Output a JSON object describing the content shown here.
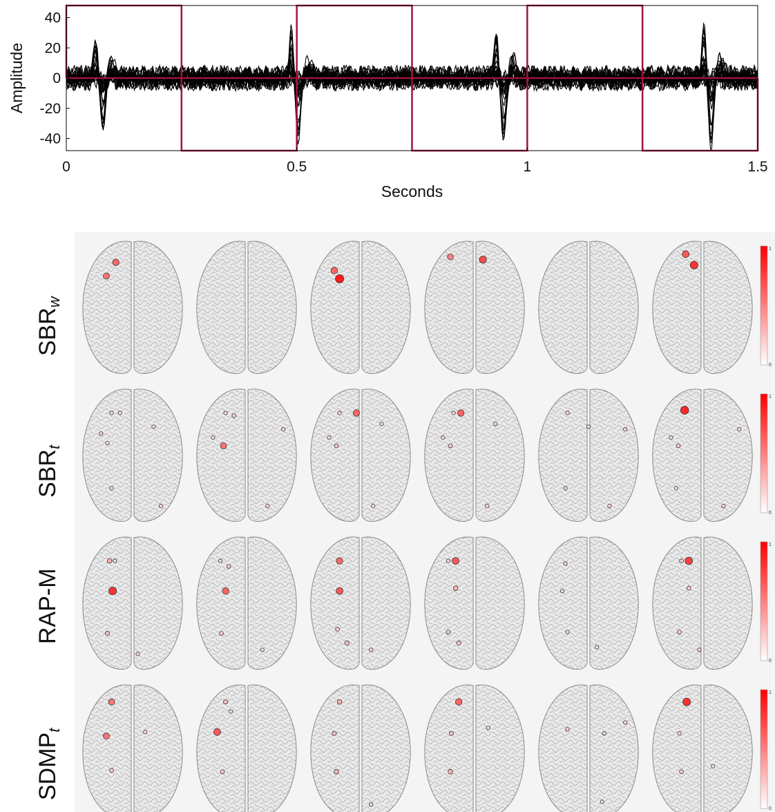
{
  "chart_data": [
    {
      "type": "line",
      "xlabel": "Seconds",
      "ylabel": "Amplitude",
      "xlim": [
        0,
        1.5
      ],
      "ylim": [
        -48,
        48
      ],
      "xticks": [
        0,
        0.5,
        1,
        1.5
      ],
      "xtick_labels": [
        "0",
        "0.5",
        "1",
        "1.5"
      ],
      "yticks": [
        40,
        20,
        0,
        -20,
        -40
      ],
      "ytick_labels": [
        "40",
        "20",
        "0",
        "-20",
        "-40"
      ],
      "series": [
        {
          "description": "overlaid multichannel EEG traces",
          "color": "#000000",
          "spikes": [
            {
              "x": 0.075,
              "peak": 28,
              "trough": -36
            },
            {
              "x": 0.5,
              "peak": 32,
              "trough": -44
            },
            {
              "x": 0.945,
              "peak": 33,
              "trough": -47
            },
            {
              "x": 1.395,
              "peak": 36,
              "trough": -47
            }
          ]
        },
        {
          "description": "window markers (alternating square wave)",
          "color": "#a0143c",
          "windows": [
            {
              "x0": 0,
              "x1": 0.25,
              "side": "up"
            },
            {
              "x0": 0.25,
              "x1": 0.5,
              "side": "down"
            },
            {
              "x0": 0.5,
              "x1": 0.75,
              "side": "up"
            },
            {
              "x0": 0.75,
              "x1": 1.0,
              "side": "down"
            },
            {
              "x0": 1.0,
              "x1": 1.25,
              "side": "up"
            },
            {
              "x0": 1.25,
              "x1": 1.5,
              "side": "down"
            }
          ]
        }
      ],
      "grid": false
    },
    {
      "type": "heatmap",
      "rows": [
        {
          "label": "SBR",
          "sub": "w"
        },
        {
          "label": "SBR",
          "sub": "t"
        },
        {
          "label": "RAP-M",
          "sub": ""
        },
        {
          "label": "SDMP",
          "sub": "t"
        }
      ],
      "columns": 6,
      "colorbar": {
        "min": 0,
        "max": 1,
        "colors": [
          "#ffffff",
          "#ff0000"
        ],
        "top_label": "1",
        "bottom_label": "0"
      },
      "sources": [
        [
          [
            {
              "x": 0.34,
              "y": 0.18,
              "s": 0.6
            },
            {
              "x": 0.25,
              "y": 0.28,
              "s": 0.55
            }
          ],
          [],
          [
            {
              "x": 0.25,
              "y": 0.24,
              "s": 0.6
            },
            {
              "x": 0.3,
              "y": 0.3,
              "s": 0.9
            }
          ],
          [
            {
              "x": 0.27,
              "y": 0.14,
              "s": 0.5
            },
            {
              "x": 0.58,
              "y": 0.16,
              "s": 0.7
            }
          ],
          [],
          [
            {
              "x": 0.34,
              "y": 0.12,
              "s": 0.65
            },
            {
              "x": 0.42,
              "y": 0.2,
              "s": 0.8
            }
          ]
        ],
        [
          [
            {
              "x": 0.3,
              "y": 0.2,
              "s": 0.15
            },
            {
              "x": 0.38,
              "y": 0.2,
              "s": 0.15
            },
            {
              "x": 0.2,
              "y": 0.35,
              "s": 0.15
            },
            {
              "x": 0.26,
              "y": 0.42,
              "s": 0.15
            },
            {
              "x": 0.7,
              "y": 0.3,
              "s": 0.15
            },
            {
              "x": 0.3,
              "y": 0.75,
              "s": 0.15
            },
            {
              "x": 0.77,
              "y": 0.88,
              "s": 0.15
            }
          ],
          [
            {
              "x": 0.3,
              "y": 0.2,
              "s": 0.15
            },
            {
              "x": 0.38,
              "y": 0.22,
              "s": 0.2
            },
            {
              "x": 0.18,
              "y": 0.38,
              "s": 0.15
            },
            {
              "x": 0.28,
              "y": 0.44,
              "s": 0.55
            },
            {
              "x": 0.85,
              "y": 0.32,
              "s": 0.15
            },
            {
              "x": 0.7,
              "y": 0.88,
              "s": 0.15
            }
          ],
          [
            {
              "x": 0.3,
              "y": 0.2,
              "s": 0.15
            },
            {
              "x": 0.46,
              "y": 0.2,
              "s": 0.6
            },
            {
              "x": 0.2,
              "y": 0.38,
              "s": 0.15
            },
            {
              "x": 0.27,
              "y": 0.44,
              "s": 0.2
            },
            {
              "x": 0.7,
              "y": 0.28,
              "s": 0.15
            },
            {
              "x": 0.62,
              "y": 0.88,
              "s": 0.15
            }
          ],
          [
            {
              "x": 0.3,
              "y": 0.2,
              "s": 0.15
            },
            {
              "x": 0.37,
              "y": 0.2,
              "s": 0.6
            },
            {
              "x": 0.2,
              "y": 0.38,
              "s": 0.15
            },
            {
              "x": 0.27,
              "y": 0.44,
              "s": 0.2
            },
            {
              "x": 0.7,
              "y": 0.28,
              "s": 0.15
            },
            {
              "x": 0.62,
              "y": 0.88,
              "s": 0.15
            }
          ],
          [
            {
              "x": 0.3,
              "y": 0.2,
              "s": 0.15
            },
            {
              "x": 0.5,
              "y": 0.3,
              "s": 0.15
            },
            {
              "x": 0.85,
              "y": 0.32,
              "s": 0.15
            },
            {
              "x": 0.28,
              "y": 0.75,
              "s": 0.15
            },
            {
              "x": 0.7,
              "y": 0.88,
              "s": 0.15
            }
          ],
          [
            {
              "x": 0.33,
              "y": 0.18,
              "s": 0.85
            },
            {
              "x": 0.2,
              "y": 0.38,
              "s": 0.15
            },
            {
              "x": 0.27,
              "y": 0.44,
              "s": 0.2
            },
            {
              "x": 0.85,
              "y": 0.32,
              "s": 0.15
            },
            {
              "x": 0.25,
              "y": 0.75,
              "s": 0.15
            },
            {
              "x": 0.7,
              "y": 0.88,
              "s": 0.15
            }
          ]
        ],
        [
          [
            {
              "x": 0.28,
              "y": 0.2,
              "s": 0.3
            },
            {
              "x": 0.33,
              "y": 0.2,
              "s": 0.15
            },
            {
              "x": 0.31,
              "y": 0.42,
              "s": 0.8
            },
            {
              "x": 0.26,
              "y": 0.73,
              "s": 0.25
            },
            {
              "x": 0.55,
              "y": 0.88,
              "s": 0.15
            }
          ],
          [
            {
              "x": 0.25,
              "y": 0.2,
              "s": 0.15
            },
            {
              "x": 0.33,
              "y": 0.24,
              "s": 0.2
            },
            {
              "x": 0.3,
              "y": 0.42,
              "s": 0.6
            },
            {
              "x": 0.26,
              "y": 0.73,
              "s": 0.2
            },
            {
              "x": 0.65,
              "y": 0.85,
              "s": 0.15
            }
          ],
          [
            {
              "x": 0.3,
              "y": 0.2,
              "s": 0.6
            },
            {
              "x": 0.3,
              "y": 0.42,
              "s": 0.65
            },
            {
              "x": 0.28,
              "y": 0.7,
              "s": 0.2
            },
            {
              "x": 0.37,
              "y": 0.8,
              "s": 0.25
            },
            {
              "x": 0.6,
              "y": 0.85,
              "s": 0.15
            }
          ],
          [
            {
              "x": 0.32,
              "y": 0.2,
              "s": 0.65
            },
            {
              "x": 0.25,
              "y": 0.2,
              "s": 0.15
            },
            {
              "x": 0.32,
              "y": 0.4,
              "s": 0.3
            },
            {
              "x": 0.25,
              "y": 0.72,
              "s": 0.2
            },
            {
              "x": 0.35,
              "y": 0.8,
              "s": 0.25
            }
          ],
          [
            {
              "x": 0.28,
              "y": 0.22,
              "s": 0.15
            },
            {
              "x": 0.25,
              "y": 0.42,
              "s": 0.15
            },
            {
              "x": 0.3,
              "y": 0.72,
              "s": 0.15
            },
            {
              "x": 0.58,
              "y": 0.83,
              "s": 0.15
            }
          ],
          [
            {
              "x": 0.3,
              "y": 0.2,
              "s": 0.2
            },
            {
              "x": 0.37,
              "y": 0.2,
              "s": 0.75
            },
            {
              "x": 0.37,
              "y": 0.4,
              "s": 0.2
            },
            {
              "x": 0.28,
              "y": 0.72,
              "s": 0.2
            },
            {
              "x": 0.47,
              "y": 0.85,
              "s": 0.15
            }
          ]
        ],
        [
          [
            {
              "x": 0.3,
              "y": 0.15,
              "s": 0.55
            },
            {
              "x": 0.25,
              "y": 0.4,
              "s": 0.55
            },
            {
              "x": 0.3,
              "y": 0.65,
              "s": 0.2
            },
            {
              "x": 0.62,
              "y": 0.37,
              "s": 0.15
            }
          ],
          [
            {
              "x": 0.3,
              "y": 0.15,
              "s": 0.25
            },
            {
              "x": 0.22,
              "y": 0.37,
              "s": 0.65
            },
            {
              "x": 0.27,
              "y": 0.66,
              "s": 0.2
            },
            {
              "x": 0.35,
              "y": 0.22,
              "s": 0.15
            }
          ],
          [
            {
              "x": 0.3,
              "y": 0.15,
              "s": 0.3
            },
            {
              "x": 0.25,
              "y": 0.38,
              "s": 0.25
            },
            {
              "x": 0.27,
              "y": 0.66,
              "s": 0.3
            },
            {
              "x": 0.6,
              "y": 0.9,
              "s": 0.15
            }
          ],
          [
            {
              "x": 0.35,
              "y": 0.15,
              "s": 0.6
            },
            {
              "x": 0.28,
              "y": 0.38,
              "s": 0.25
            },
            {
              "x": 0.27,
              "y": 0.66,
              "s": 0.3
            },
            {
              "x": 0.63,
              "y": 0.34,
              "s": 0.15
            }
          ],
          [
            {
              "x": 0.3,
              "y": 0.35,
              "s": 0.15
            },
            {
              "x": 0.65,
              "y": 0.38,
              "s": 0.15
            },
            {
              "x": 0.85,
              "y": 0.3,
              "s": 0.15
            },
            {
              "x": 0.63,
              "y": 0.88,
              "s": 0.15
            }
          ],
          [
            {
              "x": 0.35,
              "y": 0.15,
              "s": 0.8
            },
            {
              "x": 0.28,
              "y": 0.38,
              "s": 0.15
            },
            {
              "x": 0.3,
              "y": 0.66,
              "s": 0.2
            },
            {
              "x": 0.6,
              "y": 0.62,
              "s": 0.15
            }
          ]
        ]
      ]
    }
  ]
}
